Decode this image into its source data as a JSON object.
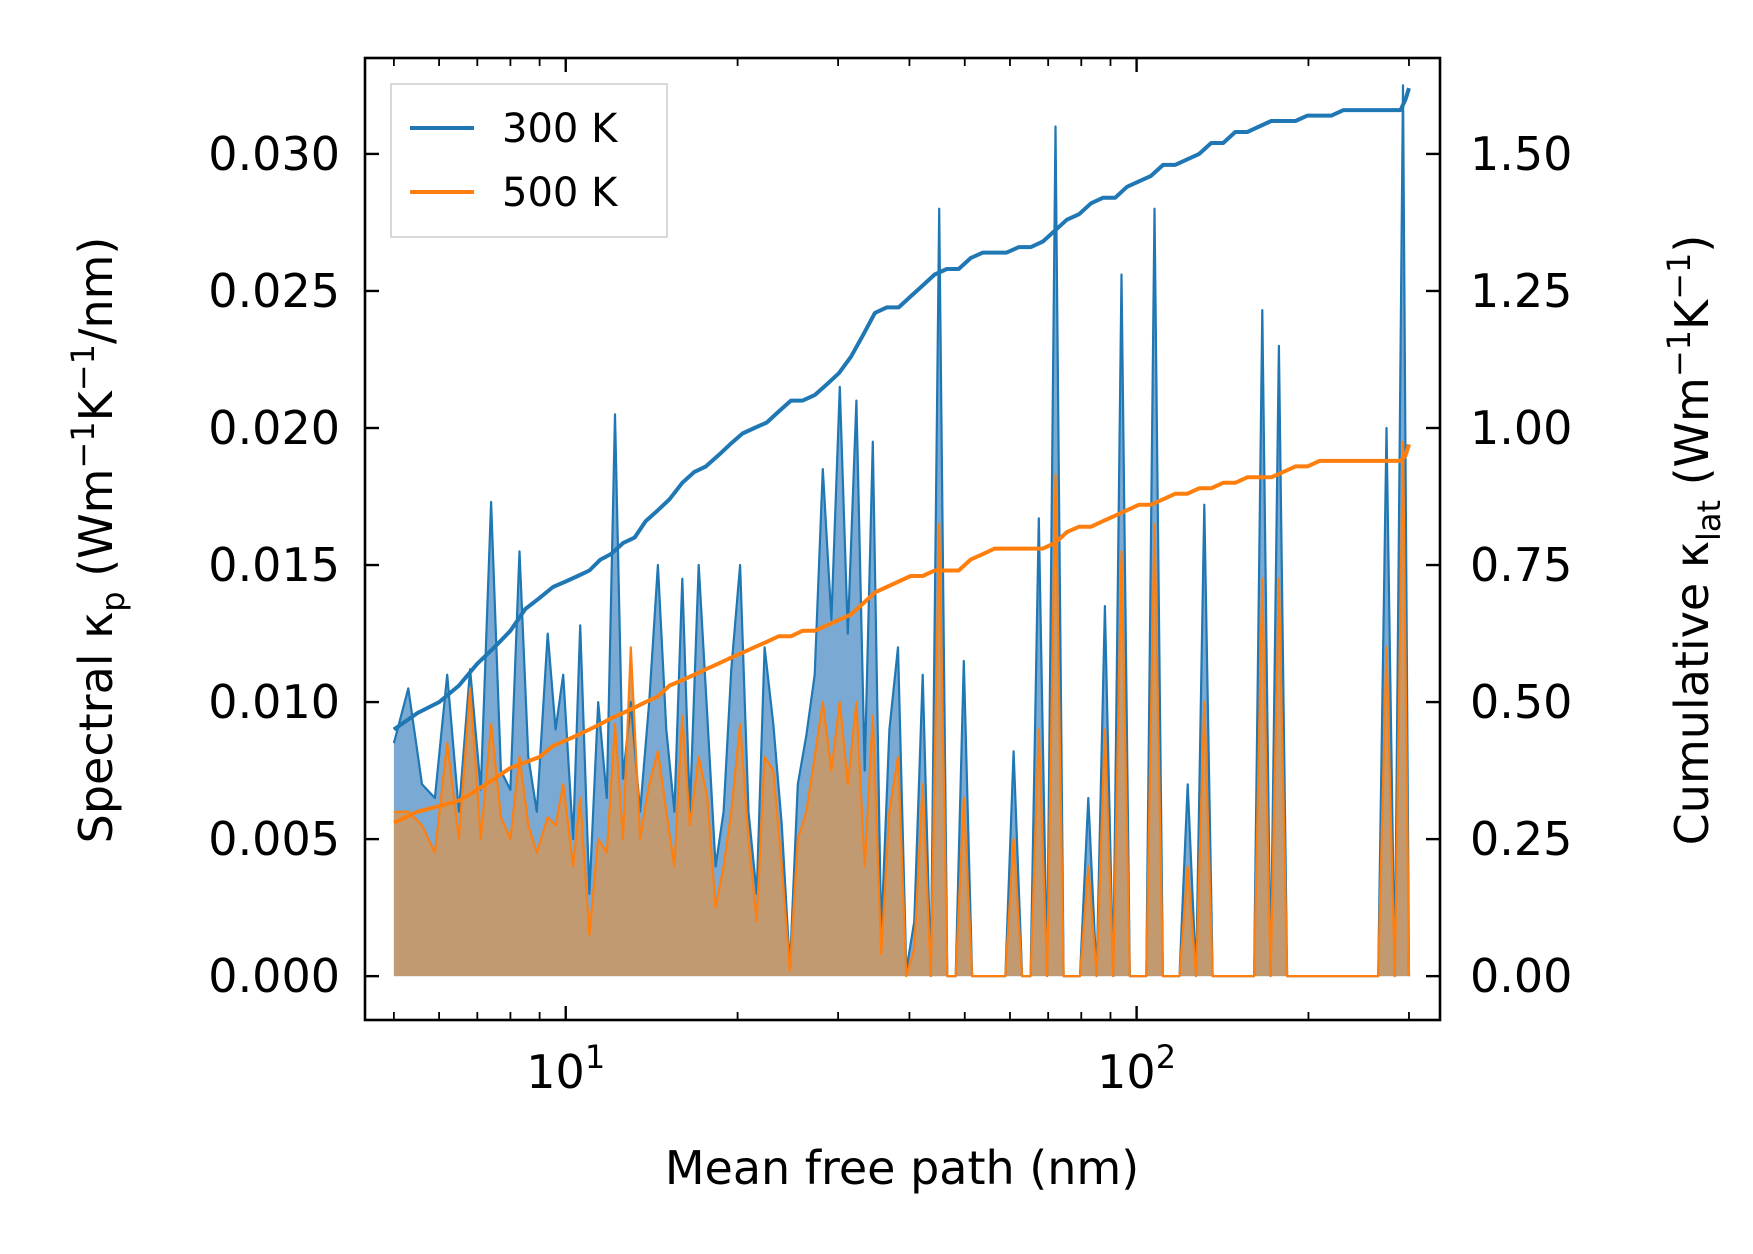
{
  "chart_data": {
    "type": "area",
    "xlabel": "Mean free path (nm)",
    "ylabel_left": {
      "prefix": "Spectral κ",
      "sub": "p",
      "mid": " (Wm",
      "sup1": "−1",
      "mid2": "K",
      "sup2": "−1",
      "suffix": "/nm)"
    },
    "ylabel_right": {
      "prefix": "Cumulative κ",
      "sub": "lat",
      "mid": " (Wm",
      "sup1": "−1",
      "mid2": "K",
      "sup2": "−1",
      "suffix": ")"
    },
    "xscale": "log",
    "xlim": [
      4.45,
      340
    ],
    "ylim_left": [
      -0.0016,
      0.0335
    ],
    "ylim_right": [
      -0.08,
      1.675
    ],
    "x_ticks": [
      {
        "value": 10,
        "base": "10",
        "exp": "1"
      },
      {
        "value": 100,
        "base": "10",
        "exp": "2"
      }
    ],
    "y_ticks_left": [
      "0.000",
      "0.005",
      "0.010",
      "0.015",
      "0.020",
      "0.025",
      "0.030"
    ],
    "y_ticks_right": [
      "0.00",
      "0.25",
      "0.50",
      "0.75",
      "1.00",
      "1.25",
      "1.50"
    ],
    "legend": {
      "position": "top-left",
      "entries": [
        "300 K",
        "500 K"
      ]
    },
    "colors": {
      "300K": "#1f77b4",
      "500K": "#ff7f0e",
      "fill300": "#7aaad4",
      "fill500": "#c6996c"
    },
    "series": [
      {
        "name": "300 K",
        "spectral_x": [
          5.0,
          5.3,
          5.6,
          5.9,
          6.2,
          6.5,
          6.8,
          7.1,
          7.4,
          7.7,
          8.0,
          8.3,
          8.6,
          8.9,
          9.3,
          9.6,
          9.9,
          10.3,
          10.6,
          11.0,
          11.4,
          11.8,
          12.2,
          12.6,
          13.0,
          13.5,
          14.0,
          14.5,
          15.0,
          15.5,
          16.0,
          16.5,
          17.1,
          17.7,
          18.3,
          18.9,
          19.5,
          20.2,
          20.9,
          21.6,
          22.3,
          23.1,
          23.9,
          24.7,
          25.5,
          26.4,
          27.3,
          28.2,
          29.2,
          30.2,
          31.2,
          32.3,
          33.4,
          34.5,
          35.7,
          36.9,
          38.2,
          39.5,
          40.8,
          42.2,
          43.6,
          45.1,
          46.6,
          48.2,
          49.8,
          51.5,
          53.3,
          55.1,
          57.0,
          58.9,
          60.9,
          63.0,
          65.2,
          67.4,
          69.7,
          72.1,
          74.5,
          77.0,
          79.6,
          82.3,
          85.1,
          88.0,
          91.0,
          94.1,
          97.3,
          100.6,
          104.0,
          107.5,
          111.2,
          115.0,
          118.9,
          122.9,
          127.1,
          131.4,
          135.9,
          140.5,
          145.3,
          150.2,
          155.3,
          160.6,
          166.0,
          171.7,
          177.5,
          183.5,
          189.8,
          196.2,
          202.9,
          209.8,
          216.9,
          224.3,
          231.9,
          239.8,
          247.9,
          256.3,
          265.0,
          274.0,
          283.3,
          292.9,
          300.0
        ],
        "spectral_y": [
          0.0085,
          0.0105,
          0.007,
          0.0065,
          0.011,
          0.006,
          0.0112,
          0.0068,
          0.0173,
          0.0075,
          0.0068,
          0.0155,
          0.008,
          0.006,
          0.0125,
          0.009,
          0.011,
          0.005,
          0.0128,
          0.003,
          0.01,
          0.0065,
          0.0205,
          0.0072,
          0.01,
          0.006,
          0.01,
          0.015,
          0.009,
          0.006,
          0.0145,
          0.006,
          0.015,
          0.0095,
          0.004,
          0.006,
          0.0112,
          0.015,
          0.006,
          0.003,
          0.012,
          0.0092,
          0.0055,
          0.0003,
          0.007,
          0.0088,
          0.011,
          0.0185,
          0.013,
          0.0215,
          0.0125,
          0.021,
          0.0075,
          0.0195,
          0.0015,
          0.009,
          0.012,
          0.0002,
          0.002,
          0.011,
          0.0,
          0.028,
          0.0,
          0.0,
          0.0115,
          0.0,
          0.0,
          0.0,
          0.0,
          0.0,
          0.0082,
          0.0,
          0.0,
          0.0167,
          0.0,
          0.031,
          0.0,
          0.0,
          0.0,
          0.0065,
          0.0,
          0.0135,
          0.0,
          0.0256,
          0.0,
          0.0,
          0.0,
          0.028,
          0.0,
          0.0,
          0.0,
          0.007,
          0.0,
          0.0172,
          0.0,
          0.0,
          0.0,
          0.0,
          0.0,
          0.0,
          0.0243,
          0.0,
          0.023,
          0.0,
          0.0,
          0.0,
          0.0,
          0.0,
          0.0,
          0.0,
          0.0,
          0.0,
          0.0,
          0.0,
          0.0,
          0.02,
          0.0,
          0.0325,
          0.0
        ],
        "cumulative_x": [
          5.0,
          5.5,
          6.0,
          6.5,
          7.0,
          7.5,
          8.0,
          8.5,
          9.0,
          9.5,
          10.0,
          10.5,
          11.0,
          11.5,
          12.0,
          12.6,
          13.2,
          13.8,
          14.5,
          15.2,
          16.0,
          16.8,
          17.6,
          18.5,
          19.4,
          20.4,
          21.4,
          22.5,
          23.6,
          24.8,
          26.0,
          27.3,
          28.7,
          30.1,
          31.6,
          33.2,
          34.8,
          36.5,
          38.3,
          40.2,
          42.2,
          44.3,
          46.5,
          48.8,
          51.2,
          53.8,
          56.4,
          59.2,
          62.2,
          65.3,
          68.5,
          71.9,
          75.5,
          79.3,
          83.2,
          87.3,
          91.7,
          96.2,
          101.0,
          106.0,
          111.3,
          116.8,
          122.6,
          128.7,
          135.1,
          141.8,
          148.9,
          156.3,
          164.0,
          172.2,
          180.8,
          189.8,
          199.2,
          209.1,
          219.5,
          230.4,
          241.9,
          253.9,
          266.5,
          279.8,
          290.0,
          296.0,
          300.0
        ],
        "cumulative_y": [
          0.45,
          0.48,
          0.5,
          0.53,
          0.57,
          0.6,
          0.63,
          0.67,
          0.69,
          0.71,
          0.72,
          0.73,
          0.74,
          0.76,
          0.77,
          0.79,
          0.8,
          0.83,
          0.85,
          0.87,
          0.9,
          0.92,
          0.93,
          0.95,
          0.97,
          0.99,
          1.0,
          1.01,
          1.03,
          1.05,
          1.05,
          1.06,
          1.08,
          1.1,
          1.13,
          1.17,
          1.21,
          1.22,
          1.22,
          1.24,
          1.26,
          1.28,
          1.29,
          1.29,
          1.31,
          1.32,
          1.32,
          1.32,
          1.33,
          1.33,
          1.34,
          1.36,
          1.38,
          1.39,
          1.41,
          1.42,
          1.42,
          1.44,
          1.45,
          1.46,
          1.48,
          1.48,
          1.49,
          1.5,
          1.52,
          1.52,
          1.54,
          1.54,
          1.55,
          1.56,
          1.56,
          1.56,
          1.57,
          1.57,
          1.57,
          1.58,
          1.58,
          1.58,
          1.58,
          1.58,
          1.58,
          1.6,
          1.62
        ]
      },
      {
        "name": "500 K",
        "spectral_x": [
          5.0,
          5.3,
          5.6,
          5.9,
          6.2,
          6.5,
          6.8,
          7.1,
          7.4,
          7.7,
          8.0,
          8.3,
          8.6,
          8.9,
          9.3,
          9.6,
          9.9,
          10.3,
          10.6,
          11.0,
          11.4,
          11.8,
          12.2,
          12.6,
          13.0,
          13.5,
          14.0,
          14.5,
          15.0,
          15.5,
          16.0,
          16.5,
          17.1,
          17.7,
          18.3,
          18.9,
          19.5,
          20.2,
          20.9,
          21.6,
          22.3,
          23.1,
          23.9,
          24.7,
          25.5,
          26.4,
          27.3,
          28.2,
          29.2,
          30.2,
          31.2,
          32.3,
          33.4,
          34.5,
          35.7,
          36.9,
          38.2,
          39.5,
          40.8,
          42.2,
          43.6,
          45.1,
          46.6,
          48.2,
          49.8,
          51.5,
          53.3,
          55.1,
          57.0,
          58.9,
          60.9,
          63.0,
          65.2,
          67.4,
          69.7,
          72.1,
          74.5,
          77.0,
          79.6,
          82.3,
          85.1,
          88.0,
          91.0,
          94.1,
          97.3,
          100.6,
          104.0,
          107.5,
          111.2,
          115.0,
          118.9,
          122.9,
          127.1,
          131.4,
          135.9,
          140.5,
          145.3,
          150.2,
          155.3,
          160.6,
          166.0,
          171.7,
          177.5,
          183.5,
          189.8,
          196.2,
          202.9,
          209.8,
          216.9,
          224.3,
          231.9,
          239.8,
          247.9,
          256.3,
          265.0,
          274.0,
          283.3,
          292.9,
          300.0
        ],
        "spectral_y": [
          0.006,
          0.006,
          0.0055,
          0.0045,
          0.0085,
          0.005,
          0.0105,
          0.005,
          0.0092,
          0.0058,
          0.005,
          0.008,
          0.0055,
          0.0045,
          0.0058,
          0.0055,
          0.007,
          0.004,
          0.0065,
          0.0015,
          0.005,
          0.0045,
          0.0092,
          0.005,
          0.012,
          0.005,
          0.007,
          0.0082,
          0.006,
          0.004,
          0.0095,
          0.0055,
          0.008,
          0.0065,
          0.0025,
          0.004,
          0.006,
          0.0092,
          0.005,
          0.002,
          0.008,
          0.0075,
          0.004,
          0.0002,
          0.005,
          0.006,
          0.008,
          0.01,
          0.0075,
          0.01,
          0.007,
          0.01,
          0.004,
          0.0095,
          0.0008,
          0.006,
          0.008,
          0.0,
          0.001,
          0.007,
          0.0,
          0.0165,
          0.0,
          0.0,
          0.0065,
          0.0,
          0.0,
          0.0,
          0.0,
          0.0,
          0.005,
          0.0,
          0.0,
          0.009,
          0.0,
          0.0183,
          0.0,
          0.0,
          0.0,
          0.004,
          0.0,
          0.009,
          0.0,
          0.0155,
          0.0,
          0.0,
          0.0,
          0.0165,
          0.0,
          0.0,
          0.0,
          0.004,
          0.0,
          0.01,
          0.0,
          0.0,
          0.0,
          0.0,
          0.0,
          0.0,
          0.0145,
          0.0,
          0.0145,
          0.0,
          0.0,
          0.0,
          0.0,
          0.0,
          0.0,
          0.0,
          0.0,
          0.0,
          0.0,
          0.0,
          0.0,
          0.012,
          0.0,
          0.0195,
          0.0
        ],
        "cumulative_x": [
          5.0,
          5.5,
          6.0,
          6.5,
          7.0,
          7.5,
          8.0,
          8.5,
          9.0,
          9.5,
          10.0,
          10.5,
          11.0,
          11.5,
          12.0,
          12.6,
          13.2,
          13.8,
          14.5,
          15.2,
          16.0,
          16.8,
          17.6,
          18.5,
          19.4,
          20.4,
          21.4,
          22.5,
          23.6,
          24.8,
          26.0,
          27.3,
          28.7,
          30.1,
          31.6,
          33.2,
          34.8,
          36.5,
          38.3,
          40.2,
          42.2,
          44.3,
          46.5,
          48.8,
          51.2,
          53.8,
          56.4,
          59.2,
          62.2,
          65.3,
          68.5,
          71.9,
          75.5,
          79.3,
          83.2,
          87.3,
          91.7,
          96.2,
          101.0,
          106.0,
          111.3,
          116.8,
          122.6,
          128.7,
          135.1,
          141.8,
          148.9,
          156.3,
          164.0,
          172.2,
          180.8,
          189.8,
          199.2,
          209.1,
          219.5,
          230.4,
          241.9,
          253.9,
          266.5,
          279.8,
          290.0,
          296.0,
          300.0
        ],
        "cumulative_y": [
          0.28,
          0.3,
          0.31,
          0.32,
          0.34,
          0.36,
          0.38,
          0.39,
          0.4,
          0.42,
          0.43,
          0.44,
          0.45,
          0.46,
          0.47,
          0.48,
          0.49,
          0.5,
          0.51,
          0.53,
          0.54,
          0.55,
          0.56,
          0.57,
          0.58,
          0.59,
          0.6,
          0.61,
          0.62,
          0.62,
          0.63,
          0.63,
          0.64,
          0.65,
          0.66,
          0.68,
          0.7,
          0.71,
          0.72,
          0.73,
          0.73,
          0.74,
          0.74,
          0.74,
          0.76,
          0.77,
          0.78,
          0.78,
          0.78,
          0.78,
          0.78,
          0.79,
          0.81,
          0.82,
          0.82,
          0.83,
          0.84,
          0.85,
          0.86,
          0.86,
          0.87,
          0.88,
          0.88,
          0.89,
          0.89,
          0.9,
          0.9,
          0.91,
          0.91,
          0.91,
          0.92,
          0.93,
          0.93,
          0.94,
          0.94,
          0.94,
          0.94,
          0.94,
          0.94,
          0.94,
          0.94,
          0.95,
          0.97
        ]
      }
    ]
  }
}
